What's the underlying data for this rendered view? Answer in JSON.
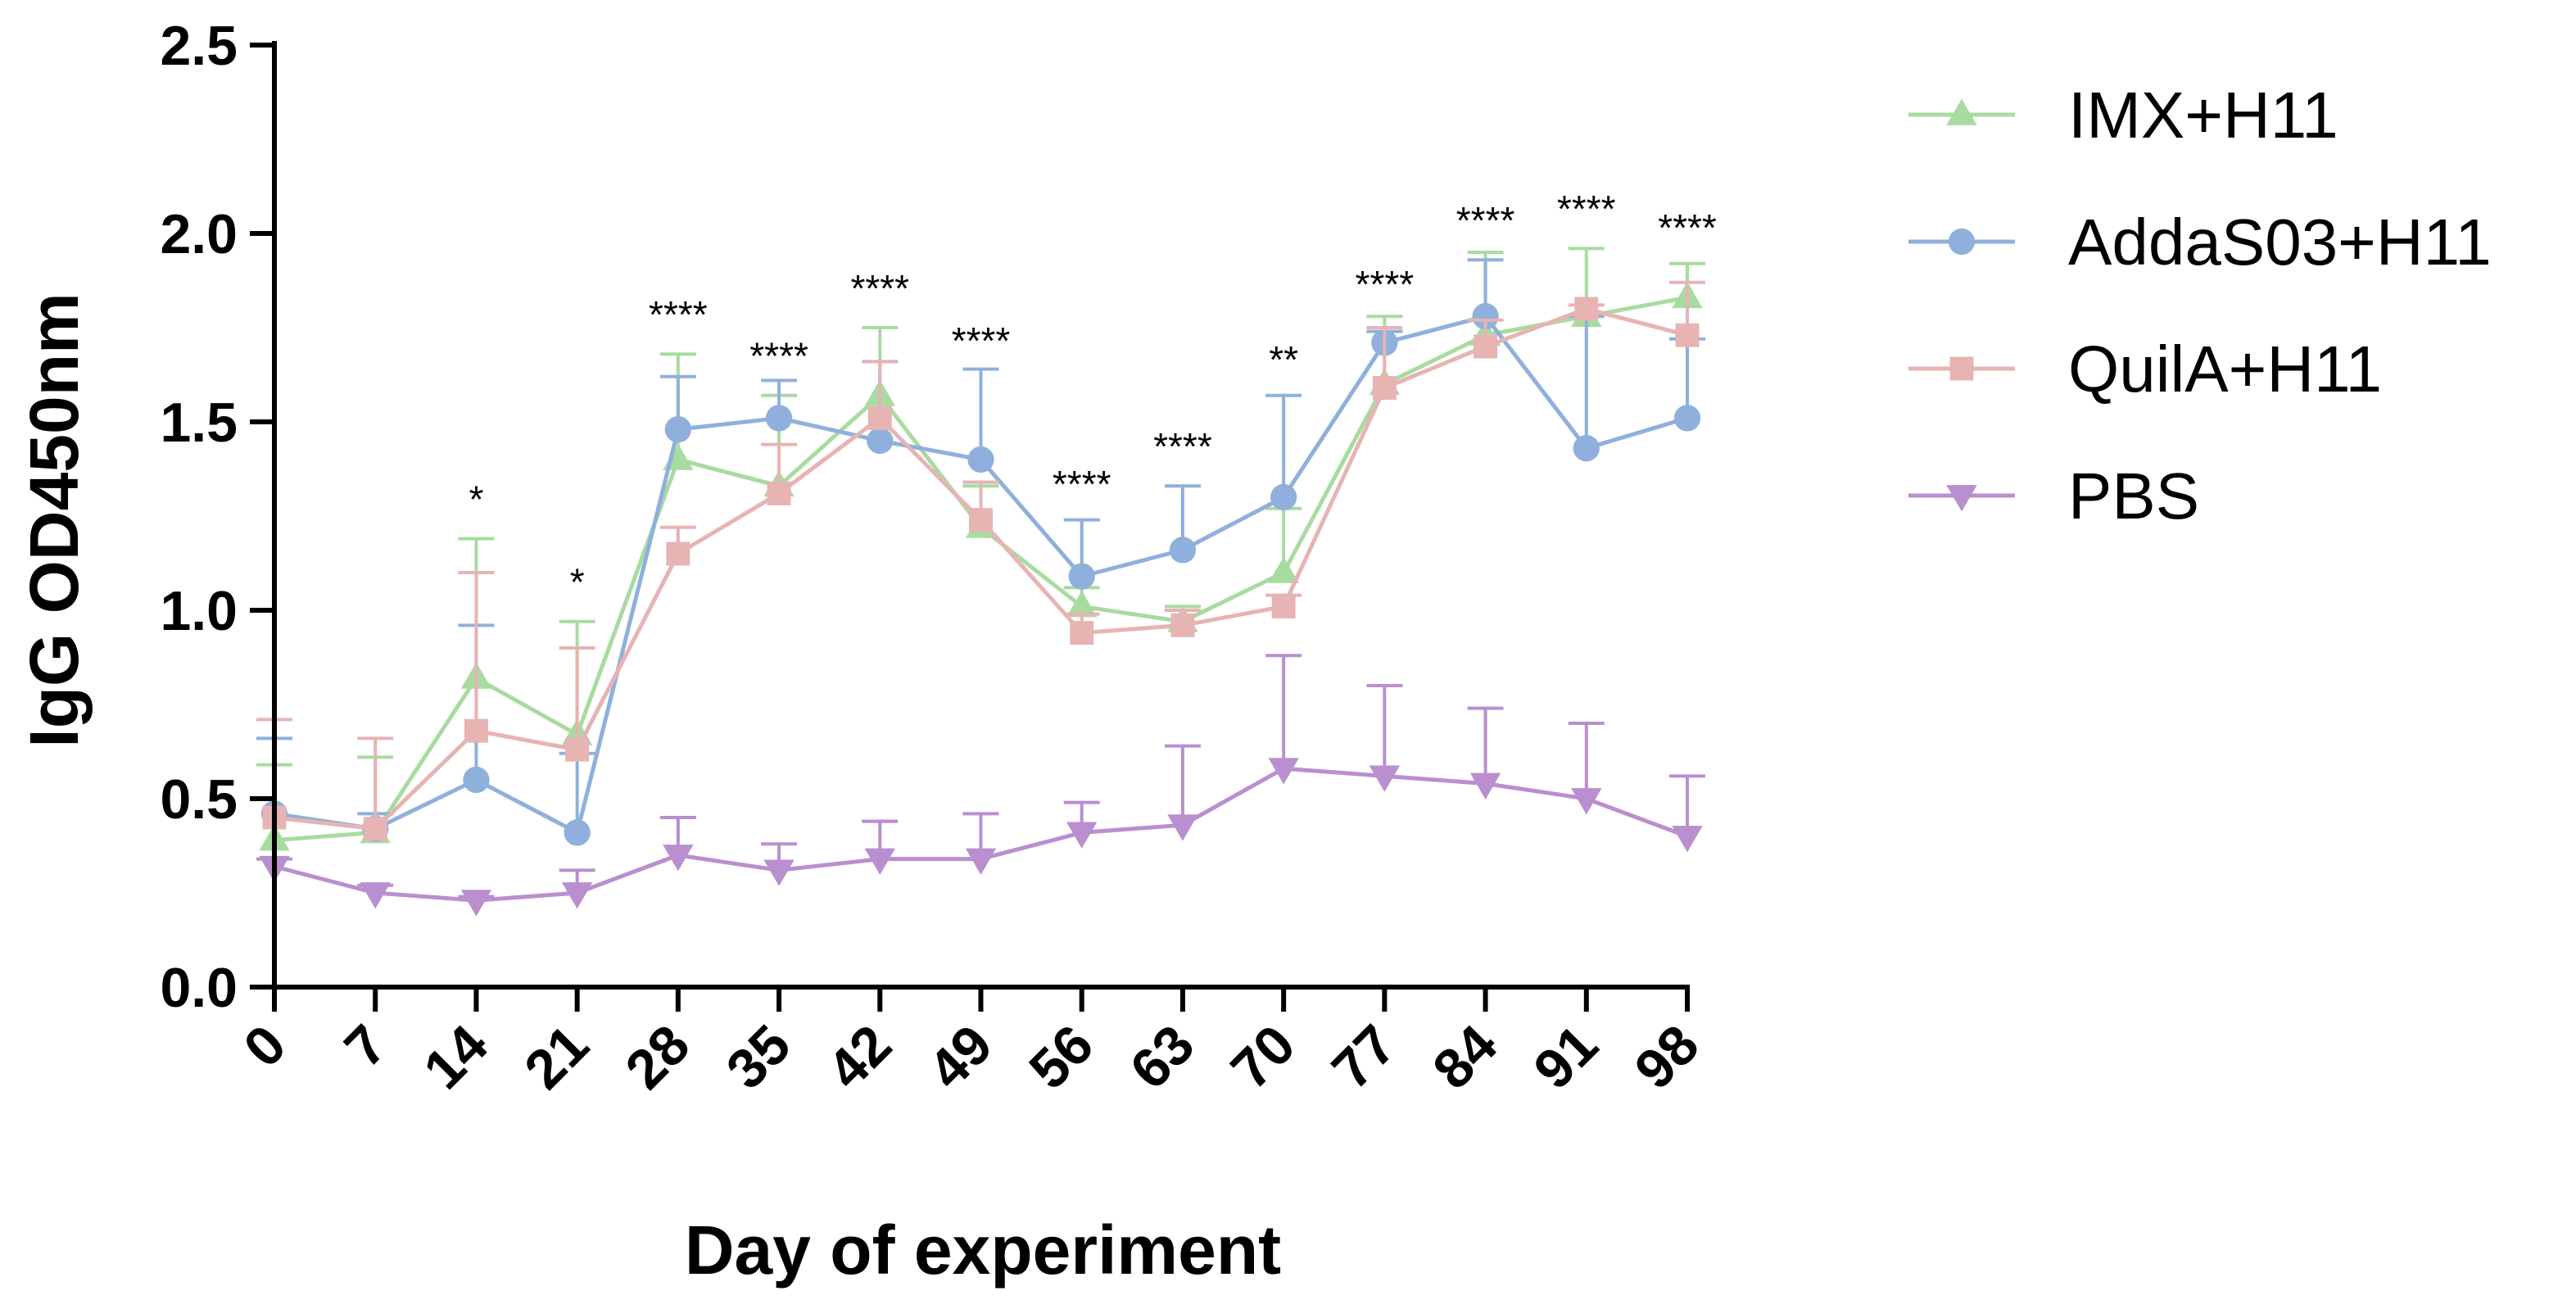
{
  "chart_data": {
    "type": "line",
    "xlabel": "Day of experiment",
    "ylabel": "IgG OD450nm",
    "x": [
      0,
      7,
      14,
      21,
      28,
      35,
      42,
      49,
      56,
      63,
      70,
      77,
      84,
      91,
      98
    ],
    "x_tick_labels": [
      "0",
      "7",
      "14",
      "21",
      "28",
      "35",
      "42",
      "49",
      "56",
      "63",
      "70",
      "77",
      "84",
      "91",
      "98"
    ],
    "ylim": [
      0,
      2.5
    ],
    "y_ticks": [
      0.0,
      0.5,
      1.0,
      1.5,
      2.0,
      2.5
    ],
    "y_tick_labels": [
      "0.0",
      "0.5",
      "1.0",
      "1.5",
      "2.0",
      "2.5"
    ],
    "grid": false,
    "legend_position": "top-right",
    "series": [
      {
        "name": "IMX+H11",
        "color": "#a8dba0",
        "marker": "triangle-up",
        "values": [
          0.39,
          0.41,
          0.82,
          0.67,
          1.4,
          1.33,
          1.57,
          1.22,
          1.01,
          0.97,
          1.1,
          1.6,
          1.73,
          1.78,
          1.83
        ],
        "errors_upper": [
          0.59,
          0.61,
          1.19,
          0.97,
          1.68,
          1.57,
          1.75,
          1.33,
          1.06,
          1.01,
          1.27,
          1.78,
          1.95,
          1.96,
          1.92
        ]
      },
      {
        "name": "AddaS03+H11",
        "color": "#8fb0dc",
        "marker": "circle",
        "values": [
          0.46,
          0.42,
          0.55,
          0.41,
          1.48,
          1.51,
          1.45,
          1.4,
          1.09,
          1.16,
          1.3,
          1.71,
          1.78,
          1.43,
          1.51
        ],
        "errors_upper": [
          0.66,
          0.46,
          0.96,
          0.62,
          1.62,
          1.61,
          1.66,
          1.64,
          1.24,
          1.33,
          1.57,
          1.74,
          1.93,
          1.78,
          1.72
        ]
      },
      {
        "name": "QuilA+H11",
        "color": "#e7b3b3",
        "marker": "square",
        "values": [
          0.45,
          0.42,
          0.68,
          0.63,
          1.15,
          1.31,
          1.51,
          1.24,
          0.94,
          0.96,
          1.01,
          1.59,
          1.7,
          1.8,
          1.73
        ],
        "errors_upper": [
          0.71,
          0.66,
          1.1,
          0.9,
          1.22,
          1.44,
          1.66,
          1.34,
          0.99,
          1.0,
          1.04,
          1.75,
          1.77,
          1.81,
          1.87
        ]
      },
      {
        "name": "PBS",
        "color": "#b98fcf",
        "marker": "triangle-down",
        "values": [
          0.32,
          0.25,
          0.23,
          0.25,
          0.35,
          0.31,
          0.34,
          0.34,
          0.41,
          0.43,
          0.58,
          0.56,
          0.54,
          0.5,
          0.4
        ],
        "errors_upper": [
          0.34,
          0.27,
          0.24,
          0.31,
          0.45,
          0.38,
          0.44,
          0.46,
          0.49,
          0.64,
          0.88,
          0.8,
          0.74,
          0.7,
          0.56
        ]
      }
    ],
    "annotations": [
      {
        "x": 14,
        "y": 1.26,
        "text": "*"
      },
      {
        "x": 21,
        "y": 1.04,
        "text": "*"
      },
      {
        "x": 28,
        "y": 1.75,
        "text": "****"
      },
      {
        "x": 35,
        "y": 1.64,
        "text": "****"
      },
      {
        "x": 42,
        "y": 1.82,
        "text": "****"
      },
      {
        "x": 49,
        "y": 1.68,
        "text": "****"
      },
      {
        "x": 56,
        "y": 1.3,
        "text": "****"
      },
      {
        "x": 63,
        "y": 1.4,
        "text": "****"
      },
      {
        "x": 70,
        "y": 1.63,
        "text": "**"
      },
      {
        "x": 77,
        "y": 1.83,
        "text": "****"
      },
      {
        "x": 84,
        "y": 2.0,
        "text": "****"
      },
      {
        "x": 91,
        "y": 2.03,
        "text": "****"
      },
      {
        "x": 98,
        "y": 1.98,
        "text": "****"
      }
    ]
  }
}
